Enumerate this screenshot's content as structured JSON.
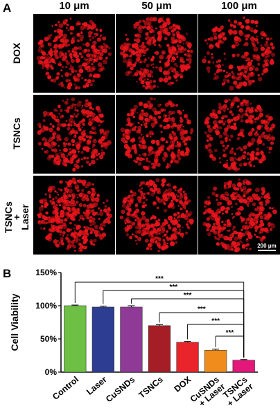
{
  "panel_a": {
    "label": "A",
    "columns": [
      "10 μm",
      "50 μm",
      "100 μm"
    ],
    "rows": [
      "DOX",
      "TSNCs",
      "TSNCs\n+\nLaser"
    ],
    "scale_bar": "200 μm",
    "tile_color": "#e8141c",
    "tile_density": [
      [
        0.75,
        0.85,
        0.55
      ],
      [
        0.7,
        0.8,
        0.65
      ],
      [
        0.9,
        0.85,
        0.8
      ]
    ]
  },
  "panel_b": {
    "label": "B"
  },
  "chart_data": {
    "type": "bar",
    "categories": [
      "Control",
      "Laser",
      "CuSNDs",
      "TSNCs",
      "DOX",
      "CuSNDs\n+ Laser",
      "TSNCs\n+ Laser"
    ],
    "values": [
      100,
      98,
      98,
      70,
      45,
      33,
      18
    ],
    "errors": [
      1,
      1.5,
      2,
      1.5,
      1.2,
      1.5,
      1
    ],
    "colors": [
      "#6dc043",
      "#2d3d92",
      "#8e3a96",
      "#a51d25",
      "#e9242a",
      "#ef8c1b",
      "#e4177b"
    ],
    "ylabel": "Cell Viability",
    "yticks": [
      "0%",
      "50%",
      "100%",
      "150%"
    ],
    "ylim": [
      0,
      150
    ],
    "significance": [
      {
        "from": 0,
        "to": 6,
        "label": "***"
      },
      {
        "from": 1,
        "to": 6,
        "label": "***"
      },
      {
        "from": 2,
        "to": 6,
        "label": "***"
      },
      {
        "from": 3,
        "to": 6,
        "label": "***"
      },
      {
        "from": 4,
        "to": 6,
        "label": "***"
      },
      {
        "from": 5,
        "to": 6,
        "label": "***"
      }
    ]
  }
}
